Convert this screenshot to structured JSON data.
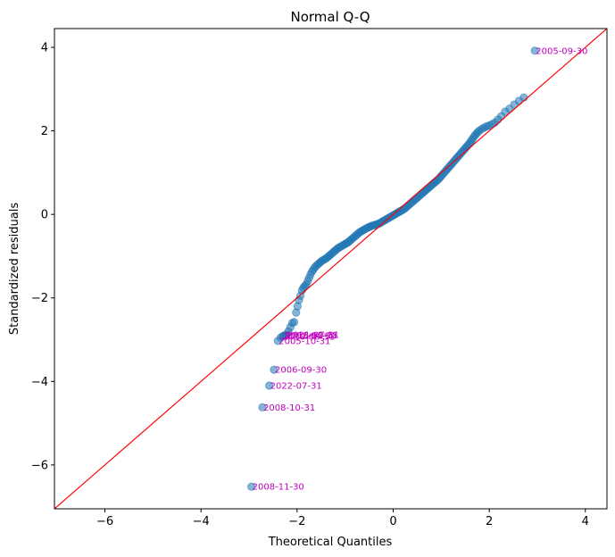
{
  "chart_data": {
    "type": "scatter",
    "title": "Normal Q-Q",
    "xlabel": "Theoretical Quantiles",
    "ylabel": "Standardized residuals",
    "xlim": [
      -7.05,
      4.45
    ],
    "ylim": [
      -7.05,
      4.45
    ],
    "xticks": [
      -6,
      -4,
      -2,
      0,
      2,
      4
    ],
    "yticks": [
      -6,
      -4,
      -2,
      0,
      2,
      4
    ],
    "xtick_labels": [
      "−6",
      "−4",
      "−2",
      "0",
      "2",
      "4"
    ],
    "ytick_labels": [
      "−6",
      "−4",
      "−2",
      "0",
      "2",
      "4"
    ],
    "grid": false,
    "reference_line": {
      "slope": 1,
      "intercept": 0,
      "color": "#ff0000"
    },
    "colors": {
      "points": "#1f77b4",
      "annotations": "#bf00bf",
      "line": "#ff0000"
    },
    "annotations": [
      {
        "label": "2005-09-30",
        "x": 2.95,
        "y": 3.92
      },
      {
        "label": "2008-11-30",
        "x": -2.95,
        "y": -6.52
      },
      {
        "label": "2008-10-31",
        "x": -2.72,
        "y": -4.62
      },
      {
        "label": "2022-07-31",
        "x": -2.58,
        "y": -4.1
      },
      {
        "label": "2006-09-30",
        "x": -2.48,
        "y": -3.72
      },
      {
        "label": "2005-10-31",
        "x": -2.4,
        "y": -3.03
      },
      {
        "label": "2010-08-31",
        "x": -2.32,
        "y": -2.92
      },
      {
        "label": "2012-04-30",
        "x": -2.28,
        "y": -2.9
      },
      {
        "label": "2018-02-28",
        "x": -2.25,
        "y": -2.89
      },
      {
        "label": "2011-07-31",
        "x": -2.22,
        "y": -2.88
      }
    ],
    "points": [
      [
        -2.95,
        -6.52
      ],
      [
        -2.72,
        -4.62
      ],
      [
        -2.58,
        -4.1
      ],
      [
        -2.48,
        -3.72
      ],
      [
        -2.4,
        -3.03
      ],
      [
        -2.34,
        -2.95
      ],
      [
        -2.3,
        -2.92
      ],
      [
        -2.27,
        -2.9
      ],
      [
        -2.24,
        -2.89
      ],
      [
        -2.22,
        -2.88
      ],
      [
        -2.18,
        -2.8
      ],
      [
        -2.14,
        -2.7
      ],
      [
        -2.1,
        -2.6
      ],
      [
        -2.06,
        -2.58
      ],
      [
        -2.02,
        -2.35
      ],
      [
        -1.99,
        -2.2
      ],
      [
        -1.96,
        -2.05
      ],
      [
        -1.93,
        -1.95
      ],
      [
        -1.9,
        -1.82
      ],
      [
        -1.87,
        -1.76
      ],
      [
        -1.84,
        -1.72
      ],
      [
        -1.81,
        -1.68
      ],
      [
        -1.78,
        -1.6
      ],
      [
        -1.75,
        -1.52
      ],
      [
        -1.72,
        -1.44
      ],
      [
        -1.69,
        -1.37
      ],
      [
        -1.66,
        -1.32
      ],
      [
        -1.63,
        -1.27
      ],
      [
        -1.6,
        -1.23
      ],
      [
        -1.57,
        -1.2
      ],
      [
        -1.54,
        -1.17
      ],
      [
        -1.51,
        -1.14
      ],
      [
        -1.48,
        -1.11
      ],
      [
        -1.45,
        -1.09
      ],
      [
        -1.42,
        -1.07
      ],
      [
        -1.39,
        -1.05
      ],
      [
        -1.36,
        -1.02
      ],
      [
        -1.33,
        -0.99
      ],
      [
        -1.3,
        -0.96
      ],
      [
        -1.27,
        -0.93
      ],
      [
        -1.24,
        -0.9
      ],
      [
        -1.21,
        -0.87
      ],
      [
        -1.18,
        -0.84
      ],
      [
        -1.15,
        -0.81
      ],
      [
        -1.12,
        -0.79
      ],
      [
        -1.09,
        -0.77
      ],
      [
        -1.06,
        -0.75
      ],
      [
        -1.03,
        -0.73
      ],
      [
        -1.0,
        -0.71
      ],
      [
        -0.97,
        -0.69
      ],
      [
        -0.94,
        -0.67
      ],
      [
        -0.91,
        -0.64
      ],
      [
        -0.88,
        -0.61
      ],
      [
        -0.85,
        -0.58
      ],
      [
        -0.82,
        -0.55
      ],
      [
        -0.79,
        -0.52
      ],
      [
        -0.76,
        -0.49
      ],
      [
        -0.73,
        -0.46
      ],
      [
        -0.7,
        -0.43
      ],
      [
        -0.67,
        -0.41
      ],
      [
        -0.64,
        -0.39
      ],
      [
        -0.61,
        -0.37
      ],
      [
        -0.58,
        -0.35
      ],
      [
        -0.55,
        -0.33
      ],
      [
        -0.52,
        -0.31
      ],
      [
        -0.49,
        -0.3
      ],
      [
        -0.46,
        -0.28
      ],
      [
        -0.43,
        -0.27
      ],
      [
        -0.4,
        -0.26
      ],
      [
        -0.37,
        -0.25
      ],
      [
        -0.34,
        -0.24
      ],
      [
        -0.31,
        -0.23
      ],
      [
        -0.28,
        -0.21
      ],
      [
        -0.25,
        -0.19
      ],
      [
        -0.22,
        -0.17
      ],
      [
        -0.19,
        -0.15
      ],
      [
        -0.16,
        -0.13
      ],
      [
        -0.13,
        -0.11
      ],
      [
        -0.1,
        -0.09
      ],
      [
        -0.07,
        -0.07
      ],
      [
        -0.04,
        -0.05
      ],
      [
        -0.01,
        -0.03
      ],
      [
        0.02,
        -0.01
      ],
      [
        0.05,
        0.01
      ],
      [
        0.08,
        0.03
      ],
      [
        0.11,
        0.05
      ],
      [
        0.14,
        0.07
      ],
      [
        0.17,
        0.09
      ],
      [
        0.2,
        0.11
      ],
      [
        0.23,
        0.13
      ],
      [
        0.26,
        0.16
      ],
      [
        0.29,
        0.19
      ],
      [
        0.32,
        0.22
      ],
      [
        0.35,
        0.25
      ],
      [
        0.38,
        0.28
      ],
      [
        0.41,
        0.31
      ],
      [
        0.44,
        0.34
      ],
      [
        0.47,
        0.37
      ],
      [
        0.5,
        0.4
      ],
      [
        0.53,
        0.43
      ],
      [
        0.56,
        0.46
      ],
      [
        0.59,
        0.49
      ],
      [
        0.62,
        0.52
      ],
      [
        0.65,
        0.55
      ],
      [
        0.68,
        0.58
      ],
      [
        0.71,
        0.61
      ],
      [
        0.74,
        0.64
      ],
      [
        0.77,
        0.67
      ],
      [
        0.8,
        0.7
      ],
      [
        0.83,
        0.73
      ],
      [
        0.86,
        0.76
      ],
      [
        0.89,
        0.79
      ],
      [
        0.92,
        0.82
      ],
      [
        0.95,
        0.85
      ],
      [
        0.98,
        0.89
      ],
      [
        1.01,
        0.93
      ],
      [
        1.04,
        0.97
      ],
      [
        1.07,
        1.01
      ],
      [
        1.1,
        1.05
      ],
      [
        1.13,
        1.09
      ],
      [
        1.16,
        1.13
      ],
      [
        1.19,
        1.17
      ],
      [
        1.22,
        1.21
      ],
      [
        1.25,
        1.25
      ],
      [
        1.28,
        1.29
      ],
      [
        1.31,
        1.33
      ],
      [
        1.34,
        1.37
      ],
      [
        1.37,
        1.41
      ],
      [
        1.4,
        1.45
      ],
      [
        1.43,
        1.49
      ],
      [
        1.46,
        1.53
      ],
      [
        1.49,
        1.57
      ],
      [
        1.52,
        1.61
      ],
      [
        1.55,
        1.65
      ],
      [
        1.58,
        1.69
      ],
      [
        1.61,
        1.74
      ],
      [
        1.64,
        1.79
      ],
      [
        1.67,
        1.84
      ],
      [
        1.7,
        1.89
      ],
      [
        1.73,
        1.93
      ],
      [
        1.76,
        1.97
      ],
      [
        1.8,
        2.01
      ],
      [
        1.85,
        2.05
      ],
      [
        1.9,
        2.08
      ],
      [
        1.95,
        2.11
      ],
      [
        2.0,
        2.13
      ],
      [
        2.06,
        2.16
      ],
      [
        2.12,
        2.2
      ],
      [
        2.18,
        2.27
      ],
      [
        2.25,
        2.35
      ],
      [
        2.33,
        2.46
      ],
      [
        2.42,
        2.53
      ],
      [
        2.52,
        2.63
      ],
      [
        2.62,
        2.72
      ],
      [
        2.72,
        2.8
      ],
      [
        2.95,
        3.92
      ]
    ]
  }
}
